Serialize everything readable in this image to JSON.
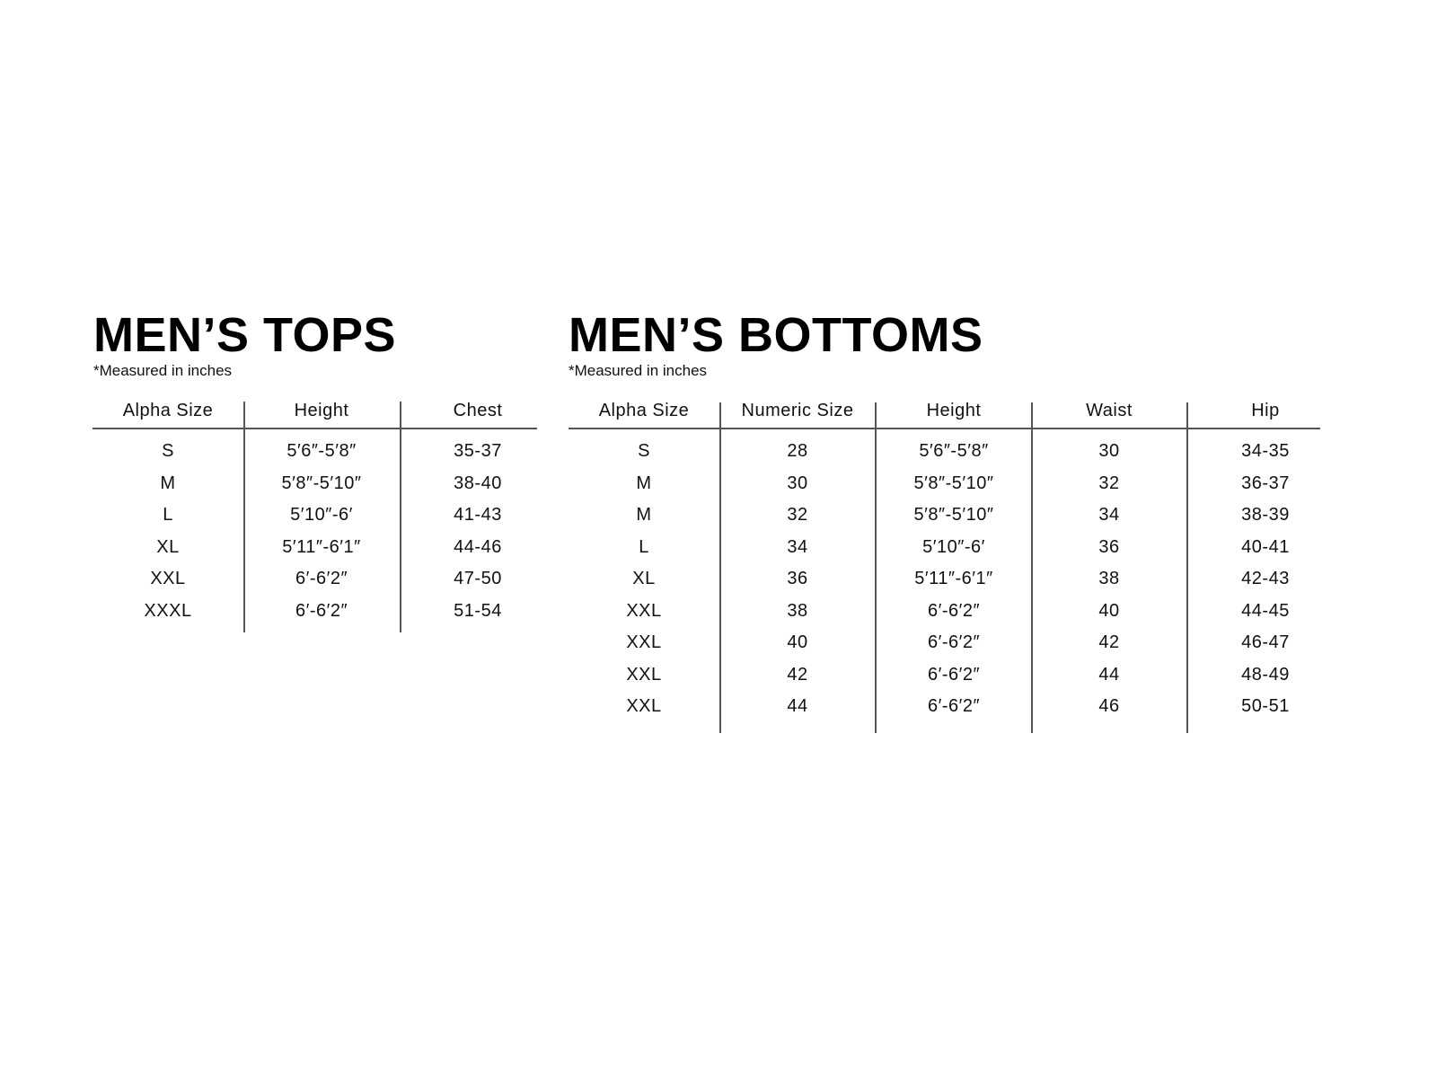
{
  "tops": {
    "title": "MEN’S TOPS",
    "note": "*Measured in inches",
    "columns": [
      "Alpha Size",
      "Height",
      "Chest"
    ],
    "rows": [
      [
        "S",
        "5′6″-5′8″",
        "35-37"
      ],
      [
        "M",
        "5′8″-5′10″",
        "38-40"
      ],
      [
        "L",
        "5′10″-6′",
        "41-43"
      ],
      [
        "XL",
        "5′11″-6′1″",
        "44-46"
      ],
      [
        "XXL",
        "6′-6′2″",
        "47-50"
      ],
      [
        "XXXL",
        "6′-6′2″",
        "51-54"
      ]
    ]
  },
  "bottoms": {
    "title": "MEN’S BOTTOMS",
    "note": "*Measured in inches",
    "columns": [
      "Alpha Size",
      "Numeric Size",
      "Height",
      "Waist",
      "Hip"
    ],
    "rows": [
      [
        "S",
        "28",
        "5′6″-5′8″",
        "30",
        "34-35"
      ],
      [
        "M",
        "30",
        "5′8″-5′10″",
        "32",
        "36-37"
      ],
      [
        "M",
        "32",
        "5′8″-5′10″",
        "34",
        "38-39"
      ],
      [
        "L",
        "34",
        "5′10″-6′",
        "36",
        "40-41"
      ],
      [
        "XL",
        "36",
        "5′11″-6′1″",
        "38",
        "42-43"
      ],
      [
        "XXL",
        "38",
        "6′-6′2″",
        "40",
        "44-45"
      ],
      [
        "XXL",
        "40",
        "6′-6′2″",
        "42",
        "46-47"
      ],
      [
        "XXL",
        "42",
        "6′-6′2″",
        "44",
        "48-49"
      ],
      [
        "XXL",
        "44",
        "6′-6′2″",
        "46",
        "50-51"
      ]
    ]
  }
}
